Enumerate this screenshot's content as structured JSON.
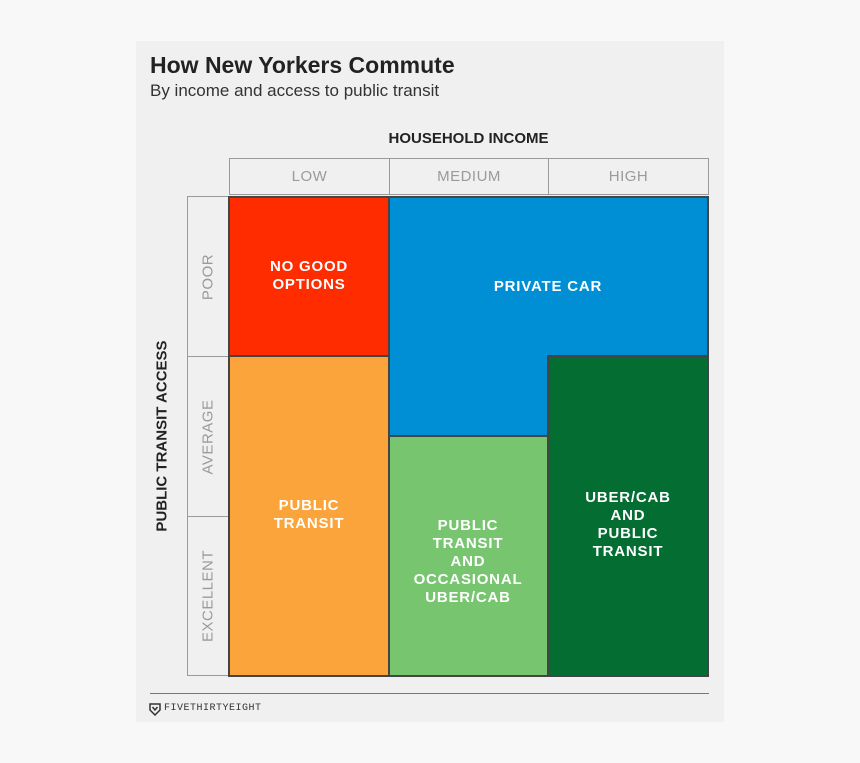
{
  "header": {
    "title": "How New Yorkers Commute",
    "subtitle": "By income and access to public transit"
  },
  "axes": {
    "x_title": "HOUSEHOLD INCOME",
    "y_title": "PUBLIC TRANSIT ACCESS",
    "columns": [
      "LOW",
      "MEDIUM",
      "HIGH"
    ],
    "rows": [
      "POOR",
      "AVERAGE",
      "EXCELLENT"
    ]
  },
  "regions": {
    "no_good_options": {
      "label": "NO GOOD\nOPTIONS",
      "color": "#ff2c00"
    },
    "private_car": {
      "label": "PRIVATE CAR",
      "color": "#008fd5"
    },
    "public_transit": {
      "label": "PUBLIC\nTRANSIT",
      "color": "#faa43b"
    },
    "public_transit_cab": {
      "label": "PUBLIC\nTRANSIT\nAND\nOCCASIONAL\nUBER/CAB",
      "color": "#77c56f"
    },
    "uber_cab_transit": {
      "label": "UBER/CAB\nAND\nPUBLIC\nTRANSIT",
      "color": "#036d32"
    }
  },
  "footer": {
    "source": "FIVETHIRTYEIGHT"
  }
}
